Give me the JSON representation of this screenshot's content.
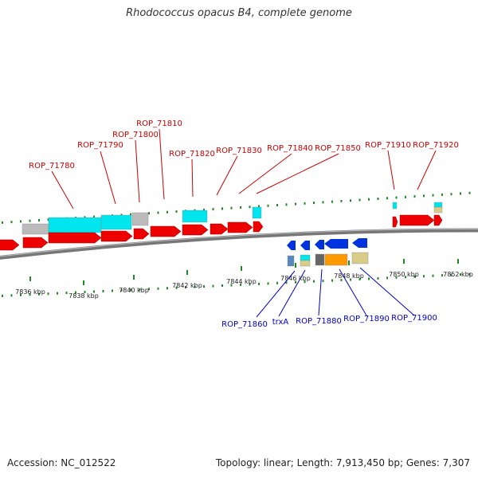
{
  "title": "Rhodococcus opacus B4, complete genome",
  "footer": {
    "accession": "Accession: NC_012522",
    "summary": "Topology: linear; Length: 7,913,450 bp; Genes: 7,307"
  },
  "colors": {
    "forward_label": "#cc0000",
    "reverse_label": "#0000cc",
    "gene_red": "#ee0000",
    "gene_blue": "#0033dd",
    "cyan": "#00e5ee",
    "gray": "#bbbbbb",
    "tick_green": "#228822",
    "backbone": "#777777",
    "orange": "#ff9900",
    "khaki": "#d8cc88",
    "steelblue": "#5588bb",
    "darkgray": "#666666"
  },
  "scale": {
    "ticks": [
      {
        "label": "7836 kbp"
      },
      {
        "label": "7838 kbp"
      },
      {
        "label": "7840 kbp"
      },
      {
        "label": "7842 kbp"
      },
      {
        "label": "7844 kbp"
      },
      {
        "label": "7846 kbp"
      },
      {
        "label": "7848 kbp"
      },
      {
        "label": "7850 kbp"
      },
      {
        "label": "7852 kbp"
      }
    ]
  },
  "forward_genes": [
    {
      "label": "ROP_71780"
    },
    {
      "label": "ROP_71790"
    },
    {
      "label": "ROP_71800"
    },
    {
      "label": "ROP_71810"
    },
    {
      "label": "ROP_71820"
    },
    {
      "label": "ROP_71830"
    },
    {
      "label": "ROP_71840"
    },
    {
      "label": "ROP_71850"
    },
    {
      "label": "ROP_71910"
    },
    {
      "label": "ROP_71920"
    }
  ],
  "reverse_genes": [
    {
      "label": "ROP_71860"
    },
    {
      "label": "trxA"
    },
    {
      "label": "ROP_71880"
    },
    {
      "label": "ROP_71890"
    },
    {
      "label": "ROP_71900"
    }
  ]
}
